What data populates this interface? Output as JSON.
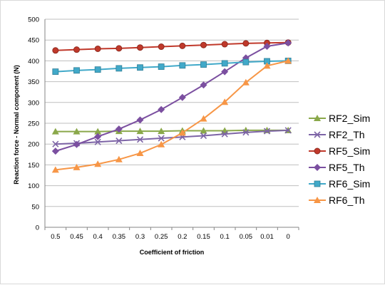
{
  "chart_data": {
    "type": "line",
    "xlabel": "Coefficient of friction",
    "ylabel": "Reaction force - Normal component (N)",
    "categories": [
      "0.5",
      "0.45",
      "0.4",
      "0.35",
      "0.3",
      "0.25",
      "0.2",
      "0.15",
      "0.1",
      "0.05",
      "0.01",
      "0"
    ],
    "ylim": [
      0,
      500
    ],
    "yticks": [
      "0",
      "50",
      "100",
      "150",
      "200",
      "250",
      "300",
      "350",
      "400",
      "450",
      "500"
    ],
    "grid": "horizontal",
    "legend": "right",
    "series": [
      {
        "name": "RF2_Sim",
        "color": "#8aa84a",
        "marker": "triangle",
        "values": [
          230,
          230,
          230,
          231,
          231,
          231,
          232,
          232,
          232,
          233,
          233,
          233
        ]
      },
      {
        "name": "RF2_Th",
        "color": "#7d64a6",
        "marker": "x",
        "values": [
          200,
          202,
          205,
          208,
          211,
          214,
          217,
          220,
          224,
          228,
          231,
          233
        ]
      },
      {
        "name": "RF5_Sim",
        "color": "#c0392b",
        "marker": "circle",
        "values": [
          425,
          427,
          429,
          430,
          432,
          434,
          436,
          438,
          440,
          442,
          443,
          444
        ]
      },
      {
        "name": "RF5_Th",
        "color": "#7b4fa0",
        "marker": "diamond",
        "values": [
          183,
          199,
          218,
          236,
          258,
          283,
          312,
          342,
          374,
          407,
          435,
          443
        ]
      },
      {
        "name": "RF6_Sim",
        "color": "#41a9c9",
        "marker": "square",
        "values": [
          374,
          377,
          379,
          382,
          384,
          386,
          389,
          391,
          394,
          397,
          399,
          400
        ]
      },
      {
        "name": "RF6_Th",
        "color": "#f79646",
        "marker": "triangle",
        "values": [
          138,
          144,
          152,
          163,
          178,
          199,
          227,
          261,
          301,
          348,
          388,
          400
        ]
      }
    ]
  }
}
